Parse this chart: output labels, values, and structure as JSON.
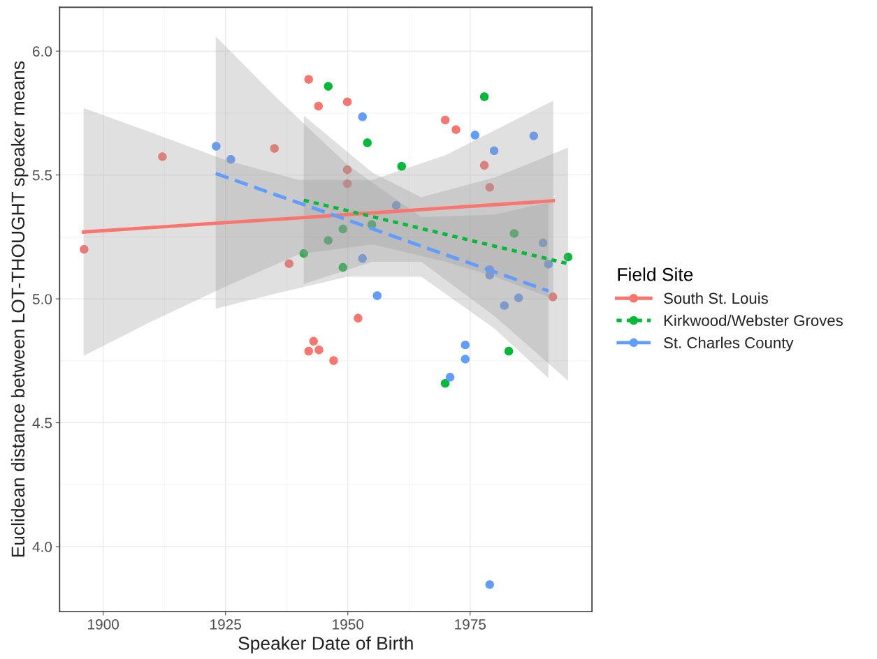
{
  "chart_data": {
    "type": "scatter",
    "xlabel": "Speaker Date of Birth",
    "ylabel": "Euclidean distance between LOT-THOUGHT speaker means",
    "legend_title": "Field Site",
    "legend": "right",
    "grid": true,
    "xlim": [
      1891.1,
      1999.9
    ],
    "xticks": [
      1900,
      1925,
      1950,
      1975
    ],
    "ylim": [
      3.738,
      6.177
    ],
    "yticks": [
      {
        "value": 4.0,
        "label": "4.0"
      },
      {
        "value": 4.5,
        "label": "4.5"
      },
      {
        "value": 5.0,
        "label": "5.0"
      },
      {
        "value": 5.5,
        "label": "5.5"
      },
      {
        "value": 6.0,
        "label": "6.0"
      }
    ],
    "series": [
      {
        "name": "South St. Louis",
        "color": "#f8766d",
        "marker": "circle",
        "x": [
          1896.1,
          1912.1,
          1935.0,
          1938.0,
          1942.0,
          1944.0,
          1949.9,
          1969.9,
          1972.1,
          1977.9,
          1949.9,
          1949.9,
          1979.0,
          1991.9,
          1952.1,
          1943.0,
          1942.0,
          1944.1,
          1947.1
        ],
        "values": [
          5.2,
          5.574,
          5.607,
          5.142,
          5.886,
          5.778,
          5.795,
          5.722,
          5.683,
          5.539,
          5.521,
          5.465,
          5.45,
          5.008,
          4.922,
          4.829,
          4.789,
          4.794,
          4.751
        ]
      },
      {
        "name": "Kirkwood/Webster Groves",
        "color": "#00ba38",
        "marker": "circle",
        "x": [
          1946.0,
          1954.0,
          1977.9,
          1961.0,
          1954.9,
          1949.0,
          1946.0,
          1941.0,
          1949.0,
          1984.0,
          1995.0,
          1969.9,
          1982.9
        ],
        "values": [
          5.858,
          5.63,
          5.816,
          5.535,
          5.3,
          5.282,
          5.236,
          5.183,
          5.127,
          5.264,
          5.169,
          4.659,
          4.789
        ]
      },
      {
        "name": "St. Charles County",
        "color": "#619cff",
        "marker": "circle",
        "x": [
          1923.1,
          1926.1,
          1953.0,
          1976.0,
          1988.0,
          1979.9,
          1959.9,
          1953.0,
          1989.9,
          1991.0,
          1979.0,
          1979.0,
          1984.9,
          1982.0,
          1956.0,
          1974.0,
          1974.0,
          1970.9,
          1979.0
        ],
        "values": [
          5.616,
          5.563,
          5.735,
          5.661,
          5.658,
          5.598,
          5.377,
          5.163,
          5.226,
          5.14,
          5.118,
          5.096,
          5.004,
          4.973,
          5.013,
          4.814,
          4.757,
          4.684,
          3.847
        ]
      },
      {
        "type": "line",
        "color": "#f8766d",
        "marker": "none",
        "line_style": "solid",
        "x": [
          1896,
          1910,
          1925,
          1940,
          1955,
          1970,
          1980,
          1992
        ],
        "values": [
          5.27,
          5.288,
          5.308,
          5.327,
          5.347,
          5.367,
          5.38,
          5.396
        ],
        "lower": [
          4.77,
          4.91,
          5.05,
          5.18,
          5.22,
          5.15,
          5.09,
          5.0
        ],
        "upper": [
          5.77,
          5.67,
          5.56,
          5.48,
          5.48,
          5.58,
          5.68,
          5.8
        ]
      },
      {
        "type": "line",
        "color": "#00ba38",
        "marker": "none",
        "line_style": "dotted",
        "x": [
          1941,
          1955,
          1965,
          1980,
          1995
        ],
        "values": [
          5.398,
          5.332,
          5.284,
          5.213,
          5.142
        ],
        "lower": [
          5.06,
          5.15,
          5.15,
          4.93,
          4.67
        ],
        "upper": [
          5.74,
          5.51,
          5.41,
          5.49,
          5.61
        ]
      },
      {
        "type": "line",
        "color": "#619cff",
        "marker": "none",
        "line_style": "dashed",
        "x": [
          1923,
          1935,
          1950,
          1965,
          1980,
          1991
        ],
        "values": [
          5.506,
          5.422,
          5.318,
          5.213,
          5.109,
          5.032
        ],
        "lower": [
          4.96,
          5.02,
          5.09,
          5.09,
          4.88,
          4.68
        ],
        "upper": [
          6.06,
          5.82,
          5.54,
          5.33,
          5.34,
          5.39
        ]
      }
    ]
  }
}
